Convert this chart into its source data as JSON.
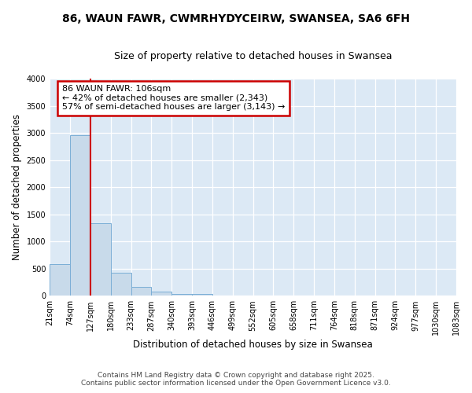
{
  "title_line1": "86, WAUN FAWR, CWMRHYDYCEIRW, SWANSEA, SA6 6FH",
  "title_line2": "Size of property relative to detached houses in Swansea",
  "xlabel": "Distribution of detached houses by size in Swansea",
  "ylabel": "Number of detached properties",
  "bin_labels": [
    "21sqm",
    "74sqm",
    "127sqm",
    "180sqm",
    "233sqm",
    "287sqm",
    "340sqm",
    "393sqm",
    "446sqm",
    "499sqm",
    "552sqm",
    "605sqm",
    "658sqm",
    "711sqm",
    "764sqm",
    "818sqm",
    "871sqm",
    "924sqm",
    "977sqm",
    "1030sqm",
    "1083sqm"
  ],
  "bar_values": [
    580,
    2960,
    1340,
    430,
    170,
    80,
    40,
    30,
    0,
    0,
    0,
    0,
    0,
    0,
    0,
    0,
    0,
    0,
    0,
    0
  ],
  "bar_color": "#c8daea",
  "bar_edge_color": "#7aaed6",
  "vline_color": "#cc0000",
  "vline_x": 2,
  "annotation_text": "86 WAUN FAWR: 106sqm\n← 42% of detached houses are smaller (2,343)\n57% of semi-detached houses are larger (3,143) →",
  "annotation_box_color": "#ffffff",
  "annotation_box_edge": "#cc0000",
  "ylim": [
    0,
    4000
  ],
  "yticks": [
    0,
    500,
    1000,
    1500,
    2000,
    2500,
    3000,
    3500,
    4000
  ],
  "fig_background": "#ffffff",
  "plot_background": "#dce9f5",
  "grid_color": "#ffffff",
  "footer_line1": "Contains HM Land Registry data © Crown copyright and database right 2025.",
  "footer_line2": "Contains public sector information licensed under the Open Government Licence v3.0."
}
